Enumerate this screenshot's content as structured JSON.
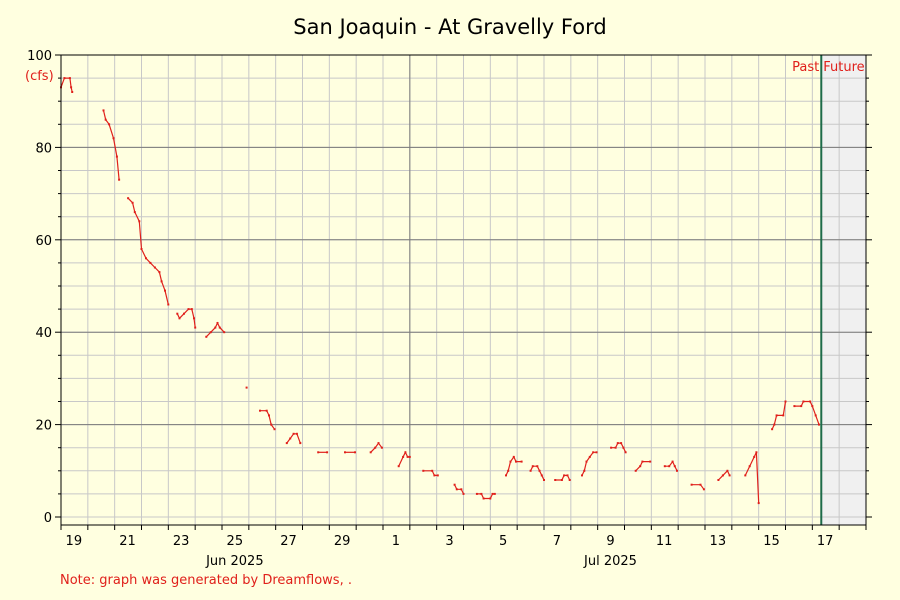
{
  "chart_data": {
    "type": "line",
    "title": "San Joaquin - At Gravelly Ford",
    "ylabel": "(cfs)",
    "ylim": [
      0,
      100
    ],
    "yticks": [
      0,
      20,
      40,
      60,
      80,
      100
    ],
    "xlim_days": [
      "2025-06-18",
      "2025-07-18"
    ],
    "x_day_ticks": [
      {
        "date": "2025-06-19",
        "label": "19"
      },
      {
        "date": "2025-06-21",
        "label": "21"
      },
      {
        "date": "2025-06-23",
        "label": "23"
      },
      {
        "date": "2025-06-25",
        "label": "25"
      },
      {
        "date": "2025-06-27",
        "label": "27"
      },
      {
        "date": "2025-06-29",
        "label": "29"
      },
      {
        "date": "2025-07-01",
        "label": "1"
      },
      {
        "date": "2025-07-03",
        "label": "3"
      },
      {
        "date": "2025-07-05",
        "label": "5"
      },
      {
        "date": "2025-07-07",
        "label": "7"
      },
      {
        "date": "2025-07-09",
        "label": "9"
      },
      {
        "date": "2025-07-11",
        "label": "11"
      },
      {
        "date": "2025-07-13",
        "label": "13"
      },
      {
        "date": "2025-07-15",
        "label": "15"
      },
      {
        "date": "2025-07-17",
        "label": "17"
      }
    ],
    "x_month_labels": [
      {
        "date": "2025-06-25",
        "label": "Jun 2025"
      },
      {
        "date": "2025-07-09",
        "label": "Jul 2025"
      }
    ],
    "month_divider": "2025-07-01",
    "now_marker": "2025-07-16 08:00",
    "past_label": "Past",
    "future_label": "Future",
    "grid": true,
    "series": [
      {
        "color": "#e0201b",
        "segments": [
          [
            [
              "2025-06-18 00:00",
              93
            ],
            [
              "2025-06-18 03:00",
              95
            ],
            [
              "2025-06-18 08:00",
              95
            ],
            [
              "2025-06-18 09:00",
              93
            ],
            [
              "2025-06-18 10:00",
              92
            ]
          ],
          [
            [
              "2025-06-19 14:00",
              88
            ],
            [
              "2025-06-19 16:00",
              86
            ],
            [
              "2025-06-19 19:00",
              85
            ],
            [
              "2025-06-19 23:00",
              82
            ],
            [
              "2025-06-20 02:00",
              78
            ],
            [
              "2025-06-20 04:00",
              73
            ]
          ],
          [
            [
              "2025-06-20 12:00",
              69
            ],
            [
              "2025-06-20 16:00",
              68
            ],
            [
              "2025-06-20 18:00",
              66
            ],
            [
              "2025-06-20 22:00",
              64
            ],
            [
              "2025-06-21 00:00",
              58
            ],
            [
              "2025-06-21 04:00",
              56
            ],
            [
              "2025-06-21 08:00",
              55
            ],
            [
              "2025-06-21 12:00",
              54
            ],
            [
              "2025-06-21 16:00",
              53
            ],
            [
              "2025-06-21 18:00",
              51
            ],
            [
              "2025-06-21 21:00",
              49
            ],
            [
              "2025-06-22 00:00",
              46
            ]
          ],
          [
            [
              "2025-06-22 08:00",
              44
            ],
            [
              "2025-06-22 10:00",
              43
            ],
            [
              "2025-06-22 14:00",
              44
            ],
            [
              "2025-06-22 18:00",
              45
            ],
            [
              "2025-06-22 21:00",
              45
            ],
            [
              "2025-06-22 23:00",
              43
            ],
            [
              "2025-06-23 00:00",
              41
            ]
          ],
          [
            [
              "2025-06-23 10:00",
              39
            ],
            [
              "2025-06-23 14:00",
              40
            ],
            [
              "2025-06-23 18:00",
              41
            ],
            [
              "2025-06-23 20:00",
              42
            ],
            [
              "2025-06-23 22:00",
              41
            ],
            [
              "2025-06-24 02:00",
              40
            ]
          ],
          [
            [
              "2025-06-24 22:00",
              28
            ]
          ],
          [
            [
              "2025-06-25 10:00",
              23
            ],
            [
              "2025-06-25 16:00",
              23
            ],
            [
              "2025-06-25 18:00",
              22
            ],
            [
              "2025-06-25 20:00",
              20
            ],
            [
              "2025-06-25 23:00",
              19
            ]
          ],
          [
            [
              "2025-06-26 10:00",
              16
            ],
            [
              "2025-06-26 13:00",
              17
            ],
            [
              "2025-06-26 16:00",
              18
            ],
            [
              "2025-06-26 19:00",
              18
            ],
            [
              "2025-06-26 22:00",
              16
            ]
          ],
          [
            [
              "2025-06-27 14:00",
              14
            ],
            [
              "2025-06-27 22:00",
              14
            ]
          ],
          [
            [
              "2025-06-28 14:00",
              14
            ],
            [
              "2025-06-28 23:00",
              14
            ]
          ],
          [
            [
              "2025-06-29 13:00",
              14
            ],
            [
              "2025-06-29 17:00",
              15
            ],
            [
              "2025-06-29 20:00",
              16
            ],
            [
              "2025-06-29 23:00",
              15
            ]
          ],
          [
            [
              "2025-06-30 14:00",
              11
            ],
            [
              "2025-06-30 18:00",
              13
            ],
            [
              "2025-06-30 20:00",
              14
            ],
            [
              "2025-06-30 22:00",
              13
            ],
            [
              "2025-07-01 00:00",
              13
            ]
          ],
          [
            [
              "2025-07-01 12:00",
              10
            ],
            [
              "2025-07-01 20:00",
              10
            ],
            [
              "2025-07-01 22:00",
              9
            ],
            [
              "2025-07-02 01:00",
              9
            ]
          ],
          [
            [
              "2025-07-02 16:00",
              7
            ],
            [
              "2025-07-02 18:00",
              6
            ],
            [
              "2025-07-02 22:00",
              6
            ],
            [
              "2025-07-03 00:00",
              5
            ]
          ],
          [
            [
              "2025-07-03 12:00",
              5
            ],
            [
              "2025-07-03 16:00",
              5
            ],
            [
              "2025-07-03 18:00",
              4
            ],
            [
              "2025-07-04 00:00",
              4
            ],
            [
              "2025-07-04 02:00",
              5
            ],
            [
              "2025-07-04 04:00",
              5
            ]
          ],
          [
            [
              "2025-07-04 14:00",
              9
            ],
            [
              "2025-07-04 16:00",
              10
            ],
            [
              "2025-07-04 18:00",
              12
            ],
            [
              "2025-07-04 21:00",
              13
            ],
            [
              "2025-07-04 23:00",
              12
            ],
            [
              "2025-07-05 04:00",
              12
            ]
          ],
          [
            [
              "2025-07-05 12:00",
              10
            ],
            [
              "2025-07-05 14:00",
              11
            ],
            [
              "2025-07-05 18:00",
              11
            ],
            [
              "2025-07-05 20:00",
              10
            ],
            [
              "2025-07-05 22:00",
              9
            ],
            [
              "2025-07-06 00:00",
              8
            ]
          ],
          [
            [
              "2025-07-06 10:00",
              8
            ],
            [
              "2025-07-06 16:00",
              8
            ],
            [
              "2025-07-06 18:00",
              9
            ],
            [
              "2025-07-06 21:00",
              9
            ],
            [
              "2025-07-06 23:00",
              8
            ]
          ],
          [
            [
              "2025-07-07 10:00",
              9
            ],
            [
              "2025-07-07 12:00",
              10
            ],
            [
              "2025-07-07 14:00",
              12
            ],
            [
              "2025-07-07 17:00",
              13
            ],
            [
              "2025-07-07 20:00",
              14
            ],
            [
              "2025-07-07 23:00",
              14
            ]
          ],
          [
            [
              "2025-07-08 12:00",
              15
            ],
            [
              "2025-07-08 16:00",
              15
            ],
            [
              "2025-07-08 18:00",
              16
            ],
            [
              "2025-07-08 21:00",
              16
            ],
            [
              "2025-07-08 23:00",
              15
            ],
            [
              "2025-07-09 01:00",
              14
            ]
          ],
          [
            [
              "2025-07-09 10:00",
              10
            ],
            [
              "2025-07-09 14:00",
              11
            ],
            [
              "2025-07-09 16:00",
              12
            ],
            [
              "2025-07-09 23:00",
              12
            ]
          ],
          [
            [
              "2025-07-10 12:00",
              11
            ],
            [
              "2025-07-10 16:00",
              11
            ],
            [
              "2025-07-10 19:00",
              12
            ],
            [
              "2025-07-10 21:00",
              11
            ],
            [
              "2025-07-10 23:00",
              10
            ]
          ],
          [
            [
              "2025-07-11 12:00",
              7
            ],
            [
              "2025-07-11 20:00",
              7
            ],
            [
              "2025-07-11 23:00",
              6
            ]
          ],
          [
            [
              "2025-07-12 12:00",
              8
            ],
            [
              "2025-07-12 16:00",
              9
            ],
            [
              "2025-07-12 20:00",
              10
            ],
            [
              "2025-07-12 22:00",
              9
            ]
          ],
          [
            [
              "2025-07-13 12:00",
              9
            ],
            [
              "2025-07-13 16:00",
              11
            ],
            [
              "2025-07-13 20:00",
              13
            ],
            [
              "2025-07-13 22:00",
              14
            ],
            [
              "2025-07-14 00:00",
              3
            ]
          ],
          [
            [
              "2025-07-14 12:00",
              19
            ],
            [
              "2025-07-14 14:00",
              20
            ],
            [
              "2025-07-14 16:00",
              22
            ],
            [
              "2025-07-14 22:00",
              22
            ],
            [
              "2025-07-15 00:00",
              25
            ]
          ],
          [
            [
              "2025-07-15 08:00",
              24
            ],
            [
              "2025-07-15 14:00",
              24
            ],
            [
              "2025-07-15 16:00",
              25
            ],
            [
              "2025-07-15 22:00",
              25
            ],
            [
              "2025-07-16 00:00",
              24
            ],
            [
              "2025-07-16 03:00",
              22
            ],
            [
              "2025-07-16 06:00",
              20
            ]
          ]
        ]
      }
    ]
  },
  "footer": {
    "note": "Note: graph was generated by Dreamflows, ."
  },
  "colors": {
    "background": "#ffffe0",
    "series": "#e0201b",
    "now_line": "#1e6b4a",
    "future_fill": "#f0f0f0",
    "grid_major": "#7a7a7a",
    "grid_minor": "#c8c8c8"
  }
}
